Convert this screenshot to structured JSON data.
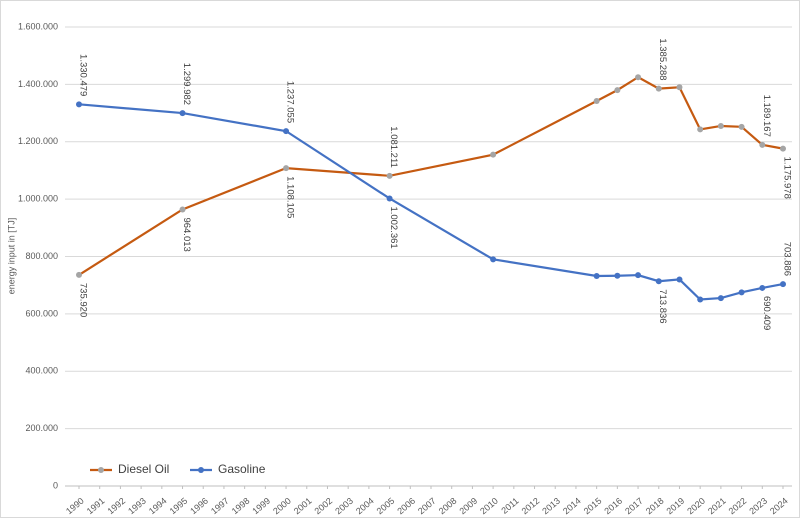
{
  "chart_data": {
    "type": "line",
    "y_label": "energy input in [TJ]",
    "x": [
      1990,
      1995,
      2000,
      2005,
      2010,
      2015,
      2016,
      2017,
      2018,
      2019,
      2020,
      2021,
      2022,
      2023,
      2024
    ],
    "series": [
      {
        "name": "Diesel Oil",
        "color": "#c55a11",
        "marker_color": "#a5a5a5",
        "values": [
          735920,
          964013,
          1108105,
          1081211,
          1155000,
          1342000,
          1380000,
          1425000,
          1385288,
          1390000,
          1243000,
          1255000,
          1252000,
          1189167,
          1175978
        ],
        "value_labels": [
          "735.920",
          "964.013",
          "1.108.105",
          "1.081.211",
          null,
          null,
          null,
          null,
          "1.385.288",
          null,
          null,
          null,
          null,
          "1.189.167",
          "1.175.978"
        ]
      },
      {
        "name": "Gasoline",
        "color": "#4472c4",
        "marker_color": "#4472c4",
        "values": [
          1330479,
          1299982,
          1237055,
          1002361,
          790000,
          732000,
          733000,
          735000,
          713836,
          720000,
          650000,
          655000,
          675000,
          690409,
          703886
        ],
        "value_labels": [
          "1.330.479",
          "1.299.982",
          "1.237.055",
          "1.002.361",
          null,
          null,
          null,
          null,
          "713.836",
          null,
          null,
          null,
          null,
          "690.409",
          "703.886"
        ]
      }
    ],
    "xlim": [
      1990,
      2024
    ],
    "xticks": [
      1990,
      1991,
      1992,
      1993,
      1994,
      1995,
      1996,
      1997,
      1998,
      1999,
      2000,
      2001,
      2002,
      2003,
      2004,
      2005,
      2006,
      2007,
      2008,
      2009,
      2010,
      2011,
      2012,
      2013,
      2014,
      2015,
      2016,
      2017,
      2018,
      2019,
      2020,
      2021,
      2022,
      2023,
      2024
    ],
    "ylim": [
      0,
      1600000
    ],
    "yticks": [
      0,
      {
        "value": 200000,
        "label": "200.000"
      },
      {
        "value": 400000,
        "label": "400.000"
      },
      {
        "value": 600000,
        "label": "600.000"
      },
      {
        "value": 800000,
        "label": "800.000"
      },
      {
        "value": 1000000,
        "label": "1.000.000"
      },
      {
        "value": 1200000,
        "label": "1.200.000"
      },
      {
        "value": 1400000,
        "label": "1.400.000"
      },
      {
        "value": 1600000,
        "label": "1.600.000"
      }
    ],
    "grid": true,
    "legend": "lower left"
  }
}
